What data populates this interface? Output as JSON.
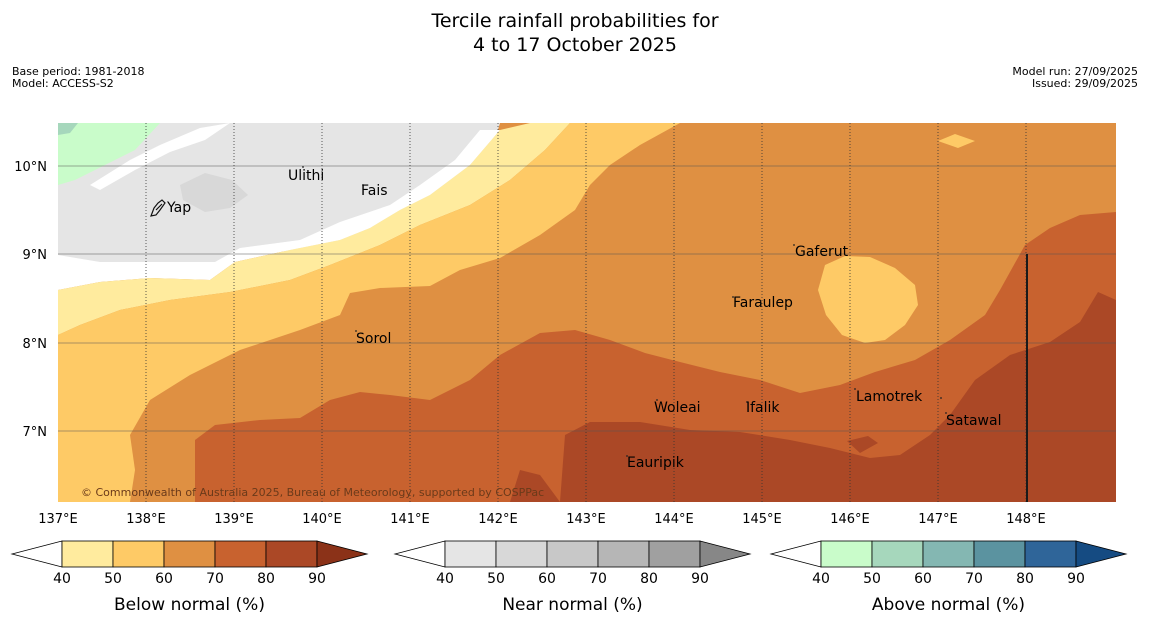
{
  "title": {
    "line1": "Tercile rainfall probabilities for",
    "line2": "4 to 17 October 2025"
  },
  "meta_left": {
    "base_period": "Base period: 1981-2018",
    "model": "Model: ACCESS-S2"
  },
  "meta_right": {
    "model_run": "Model run: 27/09/2025",
    "issued": "Issued: 29/09/2025"
  },
  "map": {
    "lat_labels": [
      "10°N",
      "9°N",
      "8°N",
      "7°N"
    ],
    "lon_labels": [
      "137°E",
      "138°E",
      "139°E",
      "140°E",
      "141°E",
      "142°E",
      "143°E",
      "144°E",
      "145°E",
      "146°E",
      "147°E",
      "148°E"
    ],
    "places": {
      "ulithi": "Ulithi",
      "fais": "Fais",
      "yap": "Yap",
      "gaferut": "Gaferut",
      "faraulep": "Faraulep",
      "sorol": "Sorol",
      "lamotrek": "Lamotrek",
      "woleai": "Woleai",
      "ifalik": "Ifalik",
      "satawal": "Satawal",
      "eauripik": "Eauripik"
    },
    "copyright": "© Commonwealth of Australia 2025, Bureau of Meteorology, supported by COSPPac"
  },
  "colorbars": {
    "ticks": [
      "40",
      "50",
      "60",
      "70",
      "80",
      "90"
    ],
    "below": {
      "label": "Below normal (%)",
      "colors": [
        "#ffffff",
        "#ffeb9e",
        "#feca66",
        "#df9042",
        "#c8622f",
        "#ab4826",
        "#8b3218"
      ]
    },
    "near": {
      "label": "Near normal (%)",
      "colors": [
        "#ffffff",
        "#e5e5e5",
        "#d8d8d8",
        "#c8c8c8",
        "#b6b6b6",
        "#a0a0a0",
        "#878787"
      ]
    },
    "above": {
      "label": "Above normal (%)",
      "colors": [
        "#ffffff",
        "#c9fcca",
        "#a6d7bc",
        "#84b7b2",
        "#5b93a0",
        "#2f6599",
        "#154b82"
      ]
    }
  }
}
